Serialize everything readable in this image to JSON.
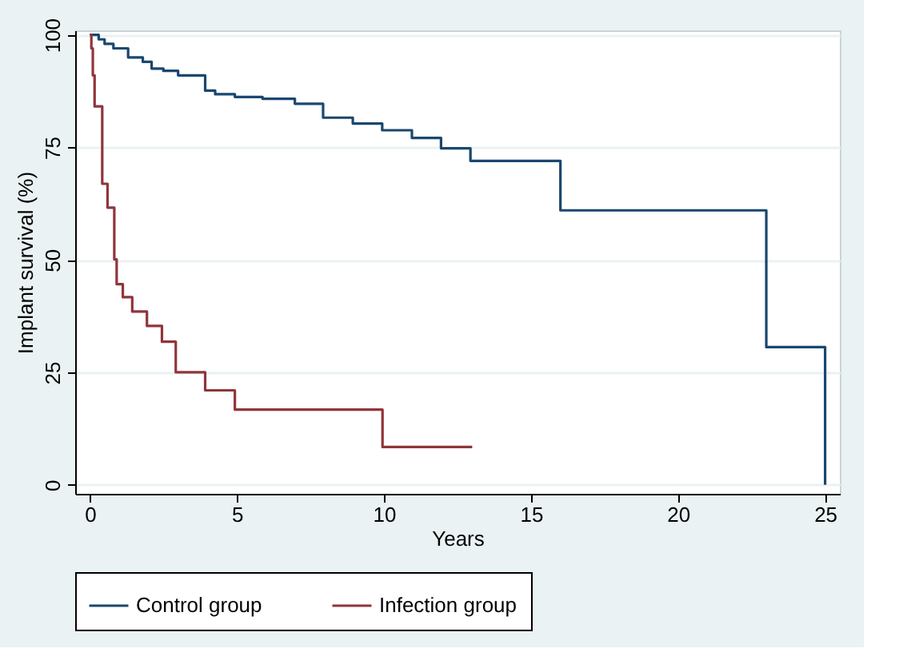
{
  "chart_data": {
    "type": "step",
    "xlabel": "Years",
    "ylabel": "Implant survival (%)",
    "xlim": [
      -0.5,
      25.5
    ],
    "ylim": [
      -2,
      101
    ],
    "xticks": [
      0,
      5,
      10,
      15,
      20,
      25
    ],
    "yticks": [
      0,
      25,
      50,
      75,
      100
    ],
    "grid": "y",
    "legend": "bottom",
    "line_style": "solid",
    "series": [
      {
        "name": "Control group",
        "color": "#1a476f",
        "x": [
          0,
          0.3,
          0.5,
          0.8,
          1.3,
          1.8,
          2.1,
          2.5,
          3,
          3.92,
          4.26,
          4.93,
          5.87,
          6.97,
          7.93,
          8.94,
          9.94,
          10.95,
          11.94,
          12.94,
          16,
          23,
          25,
          25
        ],
        "values": [
          100,
          99,
          98,
          97,
          95,
          94,
          92.5,
          92,
          91,
          87.6,
          86.8,
          86.2,
          85.8,
          84.7,
          81.6,
          80.3,
          78.8,
          77.1,
          74.8,
          72,
          61,
          30.6,
          0,
          0
        ]
      },
      {
        "name": "Infection group",
        "color": "#90353b",
        "x": [
          0,
          0.05,
          0.1,
          0.16,
          0.42,
          0.6,
          0.83,
          0.91,
          1.12,
          1.44,
          1.94,
          2.45,
          2.92,
          3.92,
          4.93,
          9.95,
          13
        ],
        "values": [
          100,
          97,
          91,
          84.1,
          66.9,
          61.6,
          50.1,
          44.6,
          41.7,
          38.5,
          35.3,
          31.8,
          25,
          21,
          16.7,
          8.4,
          8.4
        ]
      }
    ]
  }
}
